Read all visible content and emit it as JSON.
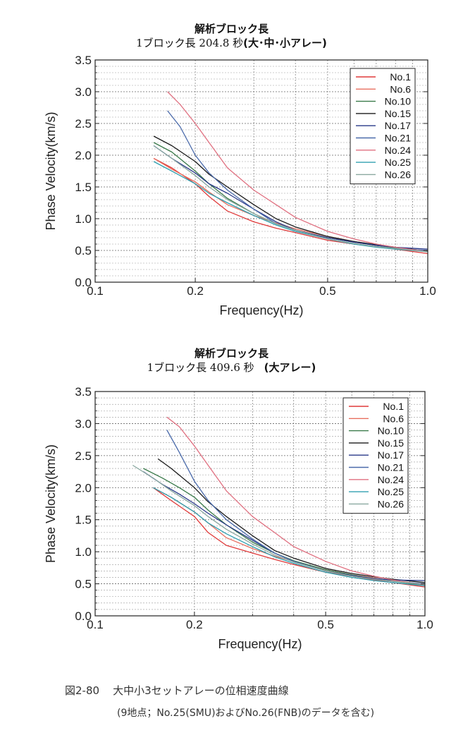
{
  "charts": [
    {
      "title": "解析ブロック長",
      "subtitle": "1ブロック長 204.8 秒",
      "subtitle_note": "(大･中･小アレー)"
    },
    {
      "title": "解析ブロック長",
      "subtitle": "1ブロック長 409.6 秒",
      "subtitle_note": "(大アレー)"
    }
  ],
  "caption": {
    "figure_label": "図2-80",
    "figure_title": "大中小3セットアレーの位相速度曲線",
    "note": "(9地点；No.25(SMU)およびNo.26(FNB)のデータを含む)"
  },
  "chart_data": [
    {
      "type": "line",
      "title": "",
      "xlabel": "Frequency(Hz)",
      "ylabel": "Phase Velocity(km/s)",
      "xscale": "log",
      "xlim": [
        0.1,
        1.0
      ],
      "ylim": [
        0.0,
        3.5
      ],
      "xticks": [
        0.1,
        0.2,
        0.5,
        1.0
      ],
      "xtick_labels": [
        "0.1",
        "0.2",
        "0.5",
        "1.0"
      ],
      "yticks": [
        0.0,
        0.5,
        1.0,
        1.5,
        2.0,
        2.5,
        3.0,
        3.5
      ],
      "ytick_labels": [
        "0.0",
        "0.5",
        "1.0",
        "1.5",
        "2.0",
        "2.5",
        "3.0",
        "3.5"
      ],
      "grid": true,
      "legend_position": "top-right",
      "series": [
        {
          "name": "No.1",
          "color": "#e03a3a",
          "x": [
            0.15,
            0.17,
            0.2,
            0.22,
            0.25,
            0.3,
            0.35,
            0.4,
            0.5,
            0.6,
            0.7,
            0.8,
            1.0
          ],
          "y": [
            1.95,
            1.8,
            1.55,
            1.35,
            1.12,
            0.95,
            0.85,
            0.78,
            0.66,
            0.6,
            0.56,
            0.52,
            0.45
          ]
        },
        {
          "name": "No.6",
          "color": "#e87060",
          "x": [
            0.15,
            0.17,
            0.2,
            0.22,
            0.25,
            0.3,
            0.35,
            0.4,
            0.5,
            0.6,
            0.7,
            0.8,
            1.0
          ],
          "y": [
            1.95,
            1.78,
            1.58,
            1.42,
            1.22,
            1.05,
            0.93,
            0.84,
            0.72,
            0.64,
            0.59,
            0.55,
            0.48
          ]
        },
        {
          "name": "No.10",
          "color": "#3a7a4a",
          "x": [
            0.15,
            0.17,
            0.2,
            0.22,
            0.25,
            0.3,
            0.35,
            0.4,
            0.5,
            0.6,
            0.7,
            0.8,
            1.0
          ],
          "y": [
            2.2,
            2.05,
            1.75,
            1.55,
            1.32,
            1.08,
            0.92,
            0.82,
            0.7,
            0.63,
            0.58,
            0.54,
            0.48
          ]
        },
        {
          "name": "No.15",
          "color": "#1a1a1a",
          "x": [
            0.15,
            0.17,
            0.2,
            0.22,
            0.25,
            0.3,
            0.35,
            0.4,
            0.5,
            0.6,
            0.7,
            0.8,
            1.0
          ],
          "y": [
            2.3,
            2.15,
            1.9,
            1.7,
            1.5,
            1.22,
            1.0,
            0.87,
            0.72,
            0.64,
            0.59,
            0.55,
            0.49
          ]
        },
        {
          "name": "No.17",
          "color": "#2a3a8a",
          "x": [
            0.15,
            0.17,
            0.2,
            0.22,
            0.25,
            0.3,
            0.35,
            0.4,
            0.5,
            0.6,
            0.7,
            0.8,
            1.0
          ],
          "y": [
            2.15,
            1.95,
            1.72,
            1.55,
            1.4,
            1.15,
            0.95,
            0.82,
            0.7,
            0.63,
            0.58,
            0.55,
            0.52
          ]
        },
        {
          "name": "No.21",
          "color": "#4a6aaa",
          "x": [
            0.165,
            0.18,
            0.2,
            0.22,
            0.25,
            0.3,
            0.35,
            0.4,
            0.5,
            0.6,
            0.7,
            0.8,
            1.0
          ],
          "y": [
            2.7,
            2.45,
            2.0,
            1.72,
            1.45,
            1.15,
            0.92,
            0.82,
            0.68,
            0.6,
            0.56,
            0.53,
            0.5
          ]
        },
        {
          "name": "No.24",
          "color": "#e07080",
          "x": [
            0.165,
            0.18,
            0.2,
            0.22,
            0.25,
            0.3,
            0.35,
            0.4,
            0.5,
            0.6,
            0.7,
            0.8,
            1.0
          ],
          "y": [
            3.0,
            2.8,
            2.5,
            2.2,
            1.8,
            1.45,
            1.22,
            1.02,
            0.8,
            0.68,
            0.6,
            0.55,
            0.48
          ]
        },
        {
          "name": "No.25",
          "color": "#30a0b0",
          "x": [
            0.15,
            0.17,
            0.2,
            0.22,
            0.25,
            0.3,
            0.35,
            0.4,
            0.5,
            0.6,
            0.7,
            0.8,
            1.0
          ],
          "y": [
            1.9,
            1.75,
            1.55,
            1.4,
            1.25,
            1.05,
            0.9,
            0.8,
            0.68,
            0.6,
            0.55,
            0.52,
            0.48
          ]
        },
        {
          "name": "No.26",
          "color": "#8aa8a0",
          "x": [
            0.15,
            0.17,
            0.2,
            0.22,
            0.25,
            0.3,
            0.35,
            0.4,
            0.5,
            0.6,
            0.7,
            0.8,
            1.0
          ],
          "y": [
            2.15,
            1.95,
            1.68,
            1.5,
            1.3,
            1.08,
            0.92,
            0.82,
            0.68,
            0.61,
            0.56,
            0.53,
            0.48
          ]
        }
      ]
    },
    {
      "type": "line",
      "title": "",
      "xlabel": "Frequency(Hz)",
      "ylabel": "Phase Velocity(km/s)",
      "xscale": "log",
      "xlim": [
        0.1,
        1.0
      ],
      "ylim": [
        0.0,
        3.5
      ],
      "xticks": [
        0.1,
        0.2,
        0.5,
        1.0
      ],
      "xtick_labels": [
        "0.1",
        "0.2",
        "0.5",
        "1.0"
      ],
      "yticks": [
        0.0,
        0.5,
        1.0,
        1.5,
        2.0,
        2.5,
        3.0,
        3.5
      ],
      "ytick_labels": [
        "0.0",
        "0.5",
        "1.0",
        "1.5",
        "2.0",
        "2.5",
        "3.0",
        "3.5"
      ],
      "grid": true,
      "legend_position": "top-right",
      "series": [
        {
          "name": "No.1",
          "color": "#e03a3a",
          "x": [
            0.15,
            0.17,
            0.2,
            0.22,
            0.25,
            0.3,
            0.35,
            0.4,
            0.5,
            0.6,
            0.7,
            0.8,
            1.0
          ],
          "y": [
            2.0,
            1.8,
            1.55,
            1.3,
            1.1,
            0.98,
            0.88,
            0.8,
            0.68,
            0.62,
            0.56,
            0.52,
            0.45
          ]
        },
        {
          "name": "No.6",
          "color": "#e87060",
          "x": [
            0.15,
            0.17,
            0.2,
            0.22,
            0.25,
            0.3,
            0.35,
            0.4,
            0.5,
            0.6,
            0.7,
            0.8,
            1.0
          ],
          "y": [
            2.0,
            1.85,
            1.62,
            1.45,
            1.22,
            1.05,
            0.93,
            0.85,
            0.72,
            0.64,
            0.59,
            0.55,
            0.47
          ]
        },
        {
          "name": "No.10",
          "color": "#3a7a4a",
          "x": [
            0.14,
            0.16,
            0.18,
            0.2,
            0.22,
            0.25,
            0.3,
            0.35,
            0.4,
            0.5,
            0.6,
            0.7,
            0.8,
            1.0
          ],
          "y": [
            2.3,
            2.15,
            2.0,
            1.85,
            1.65,
            1.42,
            1.15,
            0.98,
            0.86,
            0.72,
            0.64,
            0.58,
            0.54,
            0.48
          ]
        },
        {
          "name": "No.15",
          "color": "#1a1a1a",
          "x": [
            0.155,
            0.17,
            0.2,
            0.22,
            0.25,
            0.3,
            0.35,
            0.4,
            0.5,
            0.6,
            0.7,
            0.8,
            1.0
          ],
          "y": [
            2.45,
            2.3,
            2.0,
            1.78,
            1.55,
            1.25,
            1.02,
            0.9,
            0.74,
            0.66,
            0.61,
            0.57,
            0.52
          ]
        },
        {
          "name": "No.17",
          "color": "#2a3a8a",
          "x": [
            0.14,
            0.16,
            0.18,
            0.2,
            0.22,
            0.25,
            0.3,
            0.35,
            0.4,
            0.5,
            0.6,
            0.7,
            0.8,
            1.0
          ],
          "y": [
            2.25,
            2.05,
            1.9,
            1.75,
            1.6,
            1.42,
            1.18,
            0.98,
            0.85,
            0.7,
            0.63,
            0.58,
            0.56,
            0.55
          ]
        },
        {
          "name": "No.21",
          "color": "#4a6aaa",
          "x": [
            0.165,
            0.18,
            0.2,
            0.22,
            0.25,
            0.3,
            0.35,
            0.4,
            0.5,
            0.6,
            0.7,
            0.8,
            1.0
          ],
          "y": [
            2.9,
            2.55,
            2.1,
            1.8,
            1.5,
            1.2,
            0.98,
            0.85,
            0.7,
            0.62,
            0.57,
            0.54,
            0.5
          ]
        },
        {
          "name": "No.24",
          "color": "#e07080",
          "x": [
            0.165,
            0.18,
            0.2,
            0.22,
            0.25,
            0.3,
            0.35,
            0.4,
            0.5,
            0.6,
            0.7,
            0.8,
            1.0
          ],
          "y": [
            3.1,
            2.95,
            2.65,
            2.35,
            1.95,
            1.55,
            1.3,
            1.08,
            0.85,
            0.7,
            0.62,
            0.56,
            0.48
          ]
        },
        {
          "name": "No.25",
          "color": "#30a0b0",
          "x": [
            0.15,
            0.17,
            0.2,
            0.22,
            0.25,
            0.3,
            0.35,
            0.4,
            0.5,
            0.6,
            0.7,
            0.8,
            1.0
          ],
          "y": [
            2.0,
            1.85,
            1.62,
            1.45,
            1.28,
            1.08,
            0.92,
            0.82,
            0.68,
            0.6,
            0.55,
            0.52,
            0.47
          ]
        },
        {
          "name": "No.26",
          "color": "#8aa8a0",
          "x": [
            0.13,
            0.15,
            0.17,
            0.2,
            0.22,
            0.25,
            0.3,
            0.35,
            0.4,
            0.5,
            0.6,
            0.7,
            0.8,
            1.0
          ],
          "y": [
            2.35,
            2.15,
            1.95,
            1.72,
            1.55,
            1.35,
            1.12,
            0.95,
            0.84,
            0.7,
            0.62,
            0.57,
            0.54,
            0.49
          ]
        }
      ]
    }
  ]
}
